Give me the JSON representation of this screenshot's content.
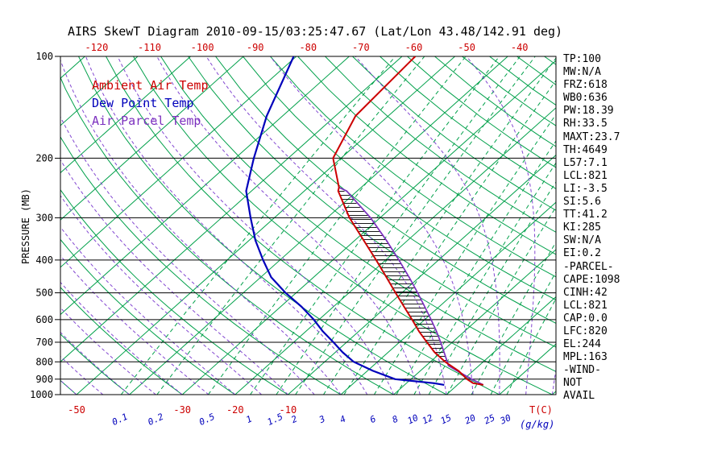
{
  "title": "AIRS SkewT Diagram 2010-09-15/03:25:47.67 (Lat/Lon 43.48/142.91 deg)",
  "legend": [
    {
      "label": "Ambient Air Temp",
      "color": "#cc0000"
    },
    {
      "label": "Dew Point Temp",
      "color": "#0000bb"
    },
    {
      "label": "Air Parcel Temp",
      "color": "#7b2fbe"
    }
  ],
  "stats_panel": [
    "TP:100",
    "MW:N/A",
    "FRZ:618",
    "WB0:636",
    "PW:18.39",
    "RH:33.5",
    "MAXT:23.7",
    "TH:4649",
    "L57:7.1",
    "LCL:821",
    "LI:-3.5",
    "SI:5.6",
    "TT:41.2",
    "KI:285",
    "SW:N/A",
    "EI:0.2",
    "-PARCEL-",
    "CAPE:1098",
    "CINH:42",
    "LCL:821",
    "CAP:0.0",
    "LFC:820",
    "EL:244",
    "MPL:163",
    "-WIND-",
    "NOT",
    "AVAIL"
  ],
  "colors": {
    "red": "#cc0000",
    "blue": "#0000bb",
    "green": "#00a04a",
    "moist_violet": "#8347d1",
    "parcel_violet": "#7b2fbe",
    "black": "#000000"
  },
  "chart_data": {
    "type": "line",
    "title": "AIRS SkewT Diagram 2010-09-15/03:25:47.67 (Lat/Lon 43.48/142.91 deg)",
    "y_axis": {
      "label": "PRESSURE (MB)",
      "scale": "log",
      "levels": [
        100,
        200,
        300,
        400,
        500,
        600,
        700,
        800,
        900,
        1000
      ],
      "range": [
        100,
        1000
      ]
    },
    "x_axis": {
      "label": "T(C)",
      "secondary_label": "(g/kg)",
      "top_labels": [
        -120,
        -110,
        -100,
        -90,
        -80,
        -70,
        -60,
        -50,
        -40
      ],
      "bottom_labels": [
        -50,
        -30,
        -20,
        -10
      ]
    },
    "isotherms_c": [
      -120,
      -110,
      -100,
      -90,
      -80,
      -70,
      -60,
      -50,
      -40,
      -30,
      -20,
      -10,
      0,
      10,
      20,
      30,
      40
    ],
    "dry_adiabats_theta_c": [
      -50,
      -40,
      -30,
      -20,
      -10,
      0,
      10,
      20,
      30,
      40,
      50,
      60,
      70,
      80,
      90,
      100,
      110,
      120,
      130,
      140,
      150,
      160,
      170,
      180,
      190,
      200,
      210
    ],
    "moist_adiabats_thetaw_c": [
      -60,
      -55,
      -50,
      -45,
      -40,
      -35,
      -30,
      -25,
      -20,
      -15,
      -10,
      -5,
      0,
      5,
      10,
      15,
      20,
      25,
      30,
      35,
      40
    ],
    "mixing_ratio_g_kg": [
      0.1,
      0.2,
      0.5,
      1,
      1.5,
      2,
      3,
      4,
      6,
      8,
      10,
      12,
      15,
      20,
      25,
      30
    ],
    "series": [
      {
        "name": "ambient-temp",
        "label": "Ambient Air Temp",
        "color": "#cc0000",
        "width": 2,
        "points": [
          [
            936,
            24.9
          ],
          [
            925,
            22.6
          ],
          [
            900,
            20.6
          ],
          [
            850,
            17.2
          ],
          [
            800,
            12.8
          ],
          [
            750,
            8.8
          ],
          [
            700,
            5.2
          ],
          [
            650,
            1.4
          ],
          [
            600,
            -2.4
          ],
          [
            550,
            -6.6
          ],
          [
            500,
            -11.2
          ],
          [
            450,
            -16.2
          ],
          [
            400,
            -21.8
          ],
          [
            350,
            -28.3
          ],
          [
            300,
            -35.8
          ],
          [
            250,
            -43.6
          ],
          [
            244,
            -44.2
          ],
          [
            200,
            -51.5
          ],
          [
            150,
            -56.2
          ],
          [
            100,
            -57.5
          ]
        ]
      },
      {
        "name": "dew-point",
        "label": "Dew Point Temp",
        "color": "#0000bb",
        "width": 2.2,
        "points": [
          [
            936,
            17.5
          ],
          [
            925,
            15.2
          ],
          [
            900,
            7.0
          ],
          [
            850,
            1.0
          ],
          [
            800,
            -4.5
          ],
          [
            750,
            -8.6
          ],
          [
            700,
            -12.5
          ],
          [
            650,
            -16.8
          ],
          [
            600,
            -21.0
          ],
          [
            550,
            -26.0
          ],
          [
            500,
            -32.0
          ],
          [
            450,
            -38.0
          ],
          [
            400,
            -43.2
          ],
          [
            350,
            -48.8
          ],
          [
            300,
            -54.5
          ],
          [
            250,
            -61.0
          ],
          [
            200,
            -66.5
          ],
          [
            150,
            -73.0
          ],
          [
            100,
            -80.5
          ]
        ]
      },
      {
        "name": "air-parcel",
        "label": "Air Parcel Temp",
        "color": "#7b2fbe",
        "width": 1.7,
        "points": [
          [
            936,
            24.9
          ],
          [
            900,
            21.5
          ],
          [
            850,
            16.9
          ],
          [
            821,
            14.2
          ],
          [
            800,
            13.2
          ],
          [
            750,
            10.6
          ],
          [
            700,
            7.8
          ],
          [
            650,
            4.7
          ],
          [
            600,
            1.2
          ],
          [
            550,
            -2.7
          ],
          [
            500,
            -7.0
          ],
          [
            450,
            -11.9
          ],
          [
            400,
            -17.5
          ],
          [
            350,
            -24.0
          ],
          [
            300,
            -31.8
          ],
          [
            250,
            -42.0
          ],
          [
            244,
            -44.2
          ]
        ]
      }
    ],
    "cape_hatch": {
      "from_mb": 820,
      "to_mb": 244
    }
  }
}
